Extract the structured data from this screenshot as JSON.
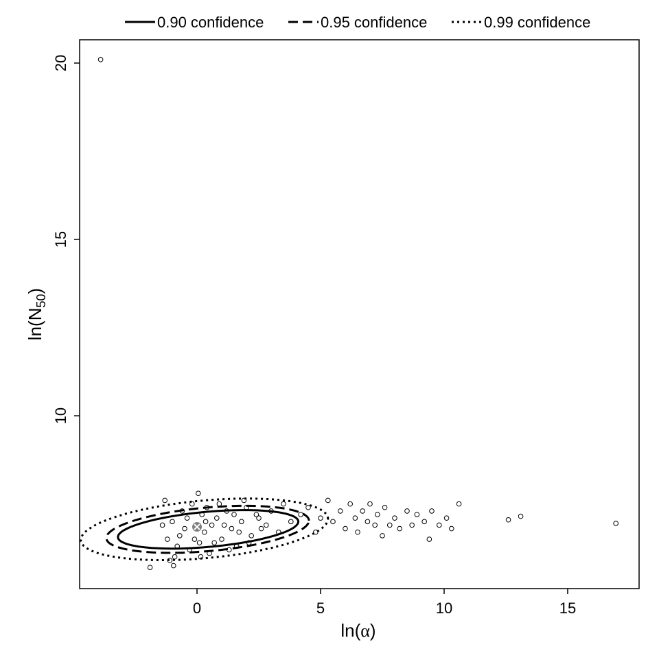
{
  "chart_data": {
    "type": "scatter",
    "xlabel_parts": [
      "ln(",
      "α",
      ")"
    ],
    "ylabel_parts": [
      "ln(N",
      "50",
      ")"
    ],
    "xlim": [
      -4.75,
      17.89
    ],
    "ylim": [
      5.1,
      20.66
    ],
    "xticks": [
      0,
      5,
      10,
      15
    ],
    "yticks": [
      10,
      15,
      20
    ],
    "color": "#000000",
    "center": {
      "x": 0,
      "y": 6.85,
      "color": "#808080"
    },
    "points": {
      "x": [
        -1.2,
        -1.0,
        -0.8,
        -0.6,
        -0.5,
        -0.3,
        -0.2,
        0,
        0.1,
        0.2,
        0.3,
        0.4,
        0.5,
        0.6,
        0.8,
        1.0,
        1.2,
        1.4,
        1.6,
        1.8,
        2.0,
        2.2,
        2.5,
        2.8,
        3.0,
        3.3,
        -1.4,
        -1.3,
        -0.9,
        -0.7,
        -0.4,
        -0.1,
        0.05,
        0.15,
        0.35,
        0.7,
        0.9,
        1.1,
        1.3,
        1.5,
        1.7,
        1.9,
        2.1,
        2.4,
        2.6,
        3.5,
        3.8,
        4.2,
        -1.1,
        -0.95,
        -1.9,
        -3.9,
        4.5,
        4.8,
        5.0,
        5.3,
        5.5,
        5.8,
        6.0,
        6.2,
        6.4,
        6.5,
        6.7,
        6.9,
        7.0,
        7.2,
        7.3,
        7.5,
        7.6,
        7.8,
        8.0,
        8.2,
        8.5,
        8.7,
        8.9,
        9.2,
        9.4,
        9.5,
        9.8,
        10.1,
        10.3,
        10.6,
        12.6,
        13.1,
        16.95
      ],
      "y": [
        6.5,
        7.0,
        6.3,
        7.3,
        6.8,
        6.2,
        7.5,
        6.9,
        6.4,
        7.2,
        6.7,
        7.4,
        6.1,
        6.9,
        7.1,
        6.5,
        7.3,
        6.8,
        6.3,
        7.0,
        7.4,
        6.6,
        7.1,
        6.9,
        7.3,
        6.7,
        6.9,
        7.6,
        6.0,
        6.6,
        7.1,
        6.5,
        7.8,
        6.0,
        7.0,
        6.4,
        7.5,
        6.9,
        6.2,
        7.2,
        6.7,
        7.6,
        6.4,
        7.2,
        6.8,
        7.5,
        7.0,
        7.2,
        5.9,
        5.75,
        5.7,
        20.1,
        7.4,
        6.7,
        7.1,
        7.6,
        7.0,
        7.3,
        6.8,
        7.5,
        7.1,
        6.7,
        7.3,
        7.0,
        7.5,
        6.9,
        7.2,
        6.6,
        7.4,
        6.9,
        7.1,
        6.8,
        7.3,
        6.9,
        7.2,
        7.0,
        6.5,
        7.3,
        6.9,
        7.1,
        6.8,
        7.5,
        7.05,
        7.15,
        6.95
      ]
    },
    "contours": [
      {
        "name": "0.90 confidence",
        "dash": "solid",
        "center_x": 0.45,
        "center_y": 6.78,
        "half_width": 3.65,
        "half_height": 0.5,
        "slope": 0.06
      },
      {
        "name": "0.95 confidence",
        "dash": "dashed",
        "center_x": 0.43,
        "center_y": 6.78,
        "half_width": 4.1,
        "half_height": 0.62,
        "slope": 0.06
      },
      {
        "name": "0.99 confidence",
        "dash": "dotted",
        "center_x": 0.3,
        "center_y": 6.78,
        "half_width": 5.0,
        "half_height": 0.82,
        "slope": 0.06
      }
    ],
    "legend": "top"
  }
}
